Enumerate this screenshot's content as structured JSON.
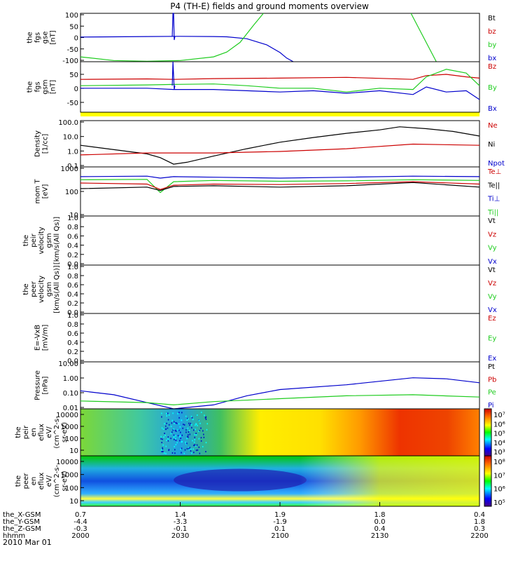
{
  "title": "P4 (TH-E) fields and ground moments overview",
  "colors": {
    "black": "#000000",
    "red": "#cc0000",
    "green": "#1fcc1f",
    "blue": "#0000cc",
    "yellow": "#ffff00"
  },
  "chart_data": [
    {
      "type": "line",
      "panel": "fgs_gse",
      "ylabel": [
        "the",
        "fgs",
        "gse",
        "[nT]"
      ],
      "yticks": [
        "100",
        "50",
        "0",
        "-50",
        "-100"
      ],
      "ylim": [
        -100,
        100
      ],
      "legend": [
        {
          "label": "Bt",
          "color": "black"
        },
        {
          "label": "bz",
          "color": "red"
        },
        {
          "label": "by",
          "color": "green"
        },
        {
          "label": "bx",
          "color": "blue"
        }
      ],
      "series": [
        {
          "name": "bx",
          "color": "blue",
          "x": [
            0,
            5,
            10,
            15,
            20,
            22,
            25,
            28,
            30,
            31,
            32
          ],
          "y": [
            2,
            3,
            4,
            5,
            4,
            3,
            -5,
            -30,
            -62,
            -85,
            -100
          ]
        },
        {
          "name": "by",
          "color": "green",
          "x": [
            0,
            5,
            10,
            15,
            20,
            22,
            24,
            26,
            27.5
          ],
          "y": [
            -80,
            -95,
            -98,
            -95,
            -80,
            -60,
            -20,
            50,
            100
          ]
        },
        {
          "name": "by_right",
          "color": "green",
          "x": [
            49.7,
            53.5
          ],
          "y": [
            100,
            -100
          ]
        },
        {
          "name": "spike",
          "color": "blue",
          "x": [
            13.8,
            13.9,
            14.0,
            14.1,
            14.2
          ],
          "y": [
            5,
            100,
            100,
            -10,
            5
          ]
        }
      ]
    },
    {
      "type": "line",
      "panel": "fgs_gsm",
      "ylabel": [
        "the",
        "fgs",
        "gsm",
        "[nT]"
      ],
      "yticks": [
        "50",
        "0",
        "-50"
      ],
      "ylim": [
        -100,
        100
      ],
      "legend": [
        {
          "label": "Bz",
          "color": "red"
        },
        {
          "label": "By",
          "color": "green"
        },
        {
          "label": "Bx",
          "color": "blue"
        }
      ],
      "series": [
        {
          "name": "Bz",
          "color": "red",
          "x": [
            0,
            10,
            14,
            20,
            30,
            40,
            50,
            52,
            55,
            58,
            60
          ],
          "y": [
            30,
            32,
            30,
            33,
            35,
            38,
            30,
            45,
            50,
            40,
            35
          ]
        },
        {
          "name": "By",
          "color": "green",
          "x": [
            0,
            10,
            14,
            20,
            25,
            30,
            35,
            40,
            45,
            50,
            52,
            55,
            58,
            60
          ],
          "y": [
            5,
            8,
            10,
            12,
            5,
            -5,
            -5,
            -20,
            -5,
            -10,
            40,
            70,
            55,
            5
          ]
        },
        {
          "name": "Bx",
          "color": "blue",
          "x": [
            0,
            10,
            14,
            20,
            25,
            30,
            35,
            40,
            45,
            50,
            52,
            55,
            58,
            60
          ],
          "y": [
            -5,
            -5,
            -10,
            -10,
            -15,
            -20,
            -15,
            -25,
            -15,
            -30,
            0,
            -20,
            -15,
            -50
          ]
        },
        {
          "name": "spike",
          "color": "blue",
          "x": [
            13.8,
            13.9,
            14.1,
            14.2
          ],
          "y": [
            5,
            100,
            -10,
            5
          ]
        }
      ]
    },
    {
      "type": "line",
      "panel": "density",
      "ylabel": [
        "Density",
        "[1/cc]"
      ],
      "yticks": [
        "100.0",
        "10.0",
        "1.0",
        "0.1"
      ],
      "yscale": "log",
      "ylim": [
        0.1,
        100
      ],
      "legend": [
        {
          "label": "Ne",
          "color": "red"
        },
        {
          "label": "Ni",
          "color": "black"
        },
        {
          "label": "Npot",
          "color": "blue"
        }
      ],
      "series": [
        {
          "name": "Ni",
          "color": "black",
          "x": [
            0,
            4,
            8,
            10,
            12,
            14,
            16,
            20,
            25,
            30,
            35,
            40,
            45,
            48,
            52,
            56,
            60
          ],
          "y": [
            2.5,
            1.5,
            0.9,
            0.7,
            0.4,
            0.15,
            0.2,
            0.5,
            1.5,
            4,
            8,
            15,
            25,
            40,
            30,
            20,
            10
          ]
        },
        {
          "name": "Ne",
          "color": "red",
          "x": [
            0,
            10,
            20,
            30,
            40,
            50,
            60
          ],
          "y": [
            0.6,
            0.8,
            0.8,
            1.0,
            1.5,
            3.0,
            2.5
          ]
        }
      ]
    },
    {
      "type": "line",
      "panel": "temperature",
      "ylabel": [
        "mom T",
        "[eV]"
      ],
      "yticks": [
        "1000",
        "100",
        "10"
      ],
      "yscale": "log",
      "ylim": [
        10,
        1000
      ],
      "legend": [
        {
          "label": "Te⊥",
          "color": "red"
        },
        {
          "label": "Te||",
          "color": "black"
        },
        {
          "label": "Ti⊥",
          "color": "blue"
        },
        {
          "label": "Ti||",
          "color": "green"
        }
      ],
      "series": [
        {
          "name": "Ti⊥",
          "color": "blue",
          "x": [
            0,
            10,
            12,
            14,
            20,
            30,
            40,
            50,
            60
          ],
          "y": [
            400,
            420,
            350,
            400,
            380,
            350,
            380,
            420,
            400
          ]
        },
        {
          "name": "Ti||",
          "color": "green",
          "x": [
            0,
            10,
            12,
            14,
            20,
            30,
            40,
            50,
            60
          ],
          "y": [
            300,
            310,
            90,
            250,
            280,
            260,
            270,
            300,
            280
          ]
        },
        {
          "name": "Te⊥",
          "color": "red",
          "x": [
            0,
            10,
            12,
            14,
            20,
            30,
            40,
            50,
            60
          ],
          "y": [
            220,
            200,
            120,
            180,
            200,
            190,
            210,
            250,
            200
          ]
        },
        {
          "name": "Te||",
          "color": "black",
          "x": [
            0,
            10,
            12,
            14,
            20,
            30,
            40,
            50,
            60
          ],
          "y": [
            130,
            150,
            110,
            160,
            170,
            150,
            170,
            230,
            150
          ]
        }
      ]
    },
    {
      "type": "line",
      "panel": "velocity_1",
      "ylabel": [
        "the",
        "peir",
        "velocity",
        "gsm",
        "[km/s(All Qs)]"
      ],
      "yticks": [
        "1.0",
        "0.8",
        "0.6",
        "0.4",
        "0.2",
        "0.0"
      ],
      "ylim": [
        0,
        1
      ],
      "legend": [
        {
          "label": "Vt",
          "color": "black"
        },
        {
          "label": "Vz",
          "color": "red"
        },
        {
          "label": "Vy",
          "color": "green"
        },
        {
          "label": "Vx",
          "color": "blue"
        }
      ],
      "series": []
    },
    {
      "type": "line",
      "panel": "velocity_2",
      "ylabel": [
        "the",
        "peer",
        "velocity",
        "gsm",
        "[km/s(All Qs)]"
      ],
      "yticks": [
        "1.0",
        "0.8",
        "0.6",
        "0.4",
        "0.2",
        "0.0"
      ],
      "ylim": [
        0,
        1
      ],
      "legend": [
        {
          "label": "Vt",
          "color": "black"
        },
        {
          "label": "Vz",
          "color": "red"
        },
        {
          "label": "Vy",
          "color": "green"
        },
        {
          "label": "Vx",
          "color": "blue"
        }
      ],
      "series": []
    },
    {
      "type": "line",
      "panel": "efield",
      "ylabel": [
        "E=-VxB",
        "[mV/m]"
      ],
      "yticks": [
        "1.0",
        "0.8",
        "0.6",
        "0.4",
        "0.2",
        "0.0"
      ],
      "ylim": [
        0,
        1
      ],
      "legend": [
        {
          "label": "Ez",
          "color": "red"
        },
        {
          "label": "Ey",
          "color": "green"
        },
        {
          "label": "Ex",
          "color": "blue"
        }
      ],
      "series": []
    },
    {
      "type": "line",
      "panel": "pressure",
      "ylabel": [
        "Pressure",
        "[nPa]"
      ],
      "yticks": [
        "10.00",
        "1.00",
        "0.10",
        "0.01"
      ],
      "yscale": "log",
      "ylim": [
        0.005,
        20
      ],
      "legend": [
        {
          "label": "Pt",
          "color": "black"
        },
        {
          "label": "Pb",
          "color": "red"
        },
        {
          "label": "Pe",
          "color": "green"
        },
        {
          "label": "Pi",
          "color": "blue"
        }
      ],
      "series": [
        {
          "name": "Pi",
          "color": "blue",
          "x": [
            0,
            5,
            10,
            14,
            20,
            25,
            30,
            40,
            50,
            55,
            60
          ],
          "y": [
            0.12,
            0.06,
            0.015,
            0.004,
            0.01,
            0.05,
            0.15,
            0.35,
            1.2,
            1.0,
            0.5
          ]
        },
        {
          "name": "Pe",
          "color": "green",
          "x": [
            0,
            10,
            14,
            20,
            30,
            40,
            50,
            60
          ],
          "y": [
            0.02,
            0.015,
            0.01,
            0.018,
            0.03,
            0.05,
            0.06,
            0.04
          ]
        }
      ]
    },
    {
      "type": "heatmap",
      "panel": "peir_eflux",
      "ylabel": [
        "the",
        "peir",
        "en",
        "eflux",
        "eV/",
        "(cm^2-s-",
        "sr-eV)"
      ],
      "yticks": [
        "10000",
        "1000",
        "100",
        "10"
      ],
      "colorbar_ticks": [
        "10⁷",
        "10⁶",
        "10⁵",
        "10⁴",
        "10³"
      ]
    },
    {
      "type": "heatmap",
      "panel": "peer_eflux",
      "ylabel": [
        "the",
        "peer",
        "en",
        "eflux",
        "eV/",
        "(cm^2-s-",
        "sr-eV)"
      ],
      "yticks": [
        "10000",
        "1000",
        "100",
        "10"
      ],
      "colorbar_ticks": [
        "10⁸",
        "10⁷",
        "10⁶",
        "10⁵"
      ]
    }
  ],
  "xaxis": {
    "row_labels": [
      "the_X-GSM",
      "the_Y-GSM",
      "the_Z-GSM",
      "hhmm"
    ],
    "columns": [
      {
        "values": [
          "0.7",
          "-4.4",
          "-0.3",
          "2000"
        ]
      },
      {
        "values": [
          "1.4",
          "-3.3",
          "-0.1",
          "2030"
        ]
      },
      {
        "values": [
          "1.9",
          "-1.9",
          "0.1",
          "2100"
        ]
      },
      {
        "values": [
          "1.8",
          "0.0",
          "0.4",
          "2130"
        ]
      },
      {
        "values": [
          "0.4",
          "1.8",
          "0.3",
          "2200"
        ]
      }
    ],
    "date": "2010 Mar 01"
  }
}
